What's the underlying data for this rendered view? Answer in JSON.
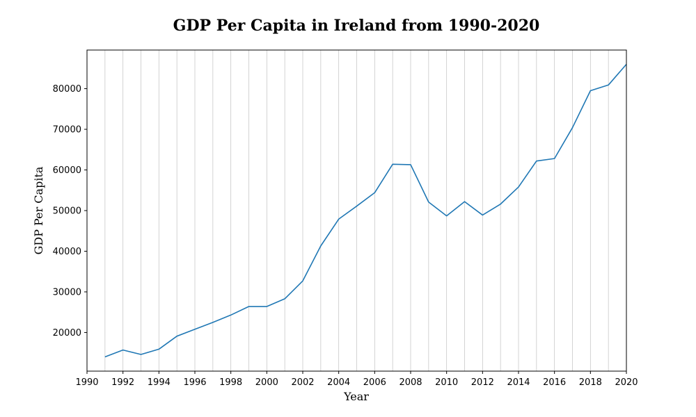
{
  "chart_data": {
    "type": "line",
    "title": "GDP Per Capita in Ireland from 1990-2020",
    "xlabel": "Year",
    "ylabel": "GDP Per Capita",
    "xlim": [
      1990,
      2020
    ],
    "ylim": [
      10500,
      89500
    ],
    "x_ticks": [
      1990,
      1992,
      1994,
      1996,
      1998,
      2000,
      2002,
      2004,
      2006,
      2008,
      2010,
      2012,
      2014,
      2016,
      2018,
      2020
    ],
    "y_ticks": [
      20000,
      30000,
      40000,
      50000,
      60000,
      70000,
      80000
    ],
    "grid": "vertical lines at every year",
    "line_color": "#1f77b4",
    "series": [
      {
        "x": [
          1991,
          1992,
          1993,
          1994,
          1995,
          1996,
          1997,
          1998,
          1999,
          2000,
          2001,
          2002,
          2003,
          2004,
          2005,
          2006,
          2007,
          2008,
          2009,
          2010,
          2011,
          2012,
          2013,
          2014,
          2015,
          2016,
          2017,
          2018,
          2019,
          2020
        ],
        "y": [
          14000,
          15700,
          14600,
          15900,
          19100,
          20800,
          22500,
          24300,
          26400,
          26400,
          28300,
          32700,
          41300,
          47900,
          51100,
          54400,
          61400,
          61300,
          52100,
          48700,
          52200,
          48900,
          51600,
          55800,
          62200,
          62800,
          70400,
          79500,
          80900,
          86000
        ]
      }
    ]
  }
}
